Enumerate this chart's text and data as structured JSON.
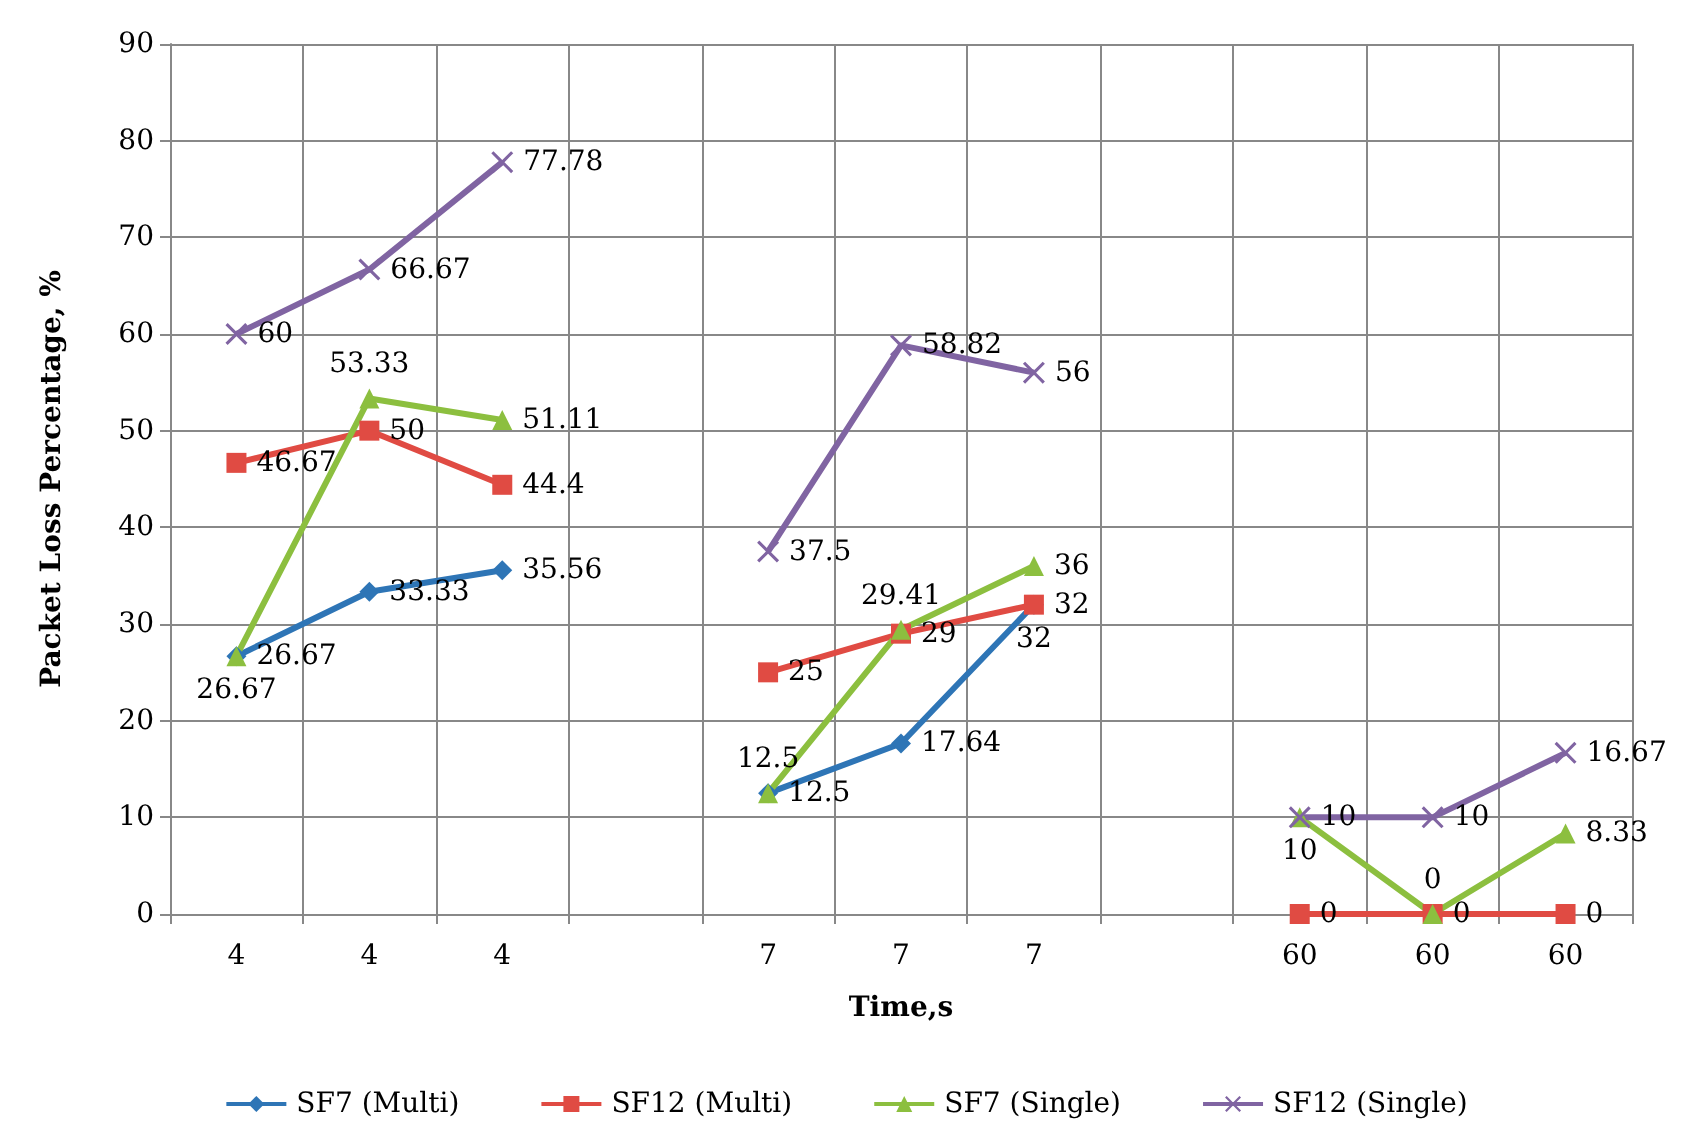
{
  "chart_data": {
    "type": "line",
    "xlabel": "Time,s",
    "ylabel": "Packet Loss Percentage, %",
    "categories": [
      "4",
      "4",
      "4",
      null,
      "7",
      "7",
      "7",
      null,
      "60",
      "60",
      "60"
    ],
    "series": [
      {
        "name": "SF7 (Multi)",
        "color": "#2e75b6",
        "marker": "diamond",
        "values": [
          26.67,
          33.33,
          35.56,
          null,
          12.5,
          17.64,
          32,
          null,
          null,
          null,
          null
        ]
      },
      {
        "name": "SF12 (Multi)",
        "color": "#e04b43",
        "marker": "square",
        "values": [
          46.67,
          50,
          44.4,
          null,
          25,
          29,
          32,
          null,
          0,
          0,
          0
        ]
      },
      {
        "name": "SF7 (Single)",
        "color": "#8cbf3f",
        "marker": "triangle",
        "values": [
          26.67,
          53.33,
          51.11,
          null,
          12.5,
          29.41,
          36,
          null,
          10,
          0,
          8.33
        ]
      },
      {
        "name": "SF12 (Single)",
        "color": "#8064a2",
        "marker": "cross",
        "values": [
          60,
          66.67,
          77.78,
          null,
          37.5,
          58.82,
          56,
          null,
          10,
          10,
          16.67
        ]
      }
    ],
    "ylim": [
      0,
      90
    ],
    "yticks": [
      0,
      10,
      20,
      30,
      40,
      50,
      60,
      70,
      80,
      90
    ],
    "grid": true,
    "legend": "bottom",
    "data_labels": true,
    "line_style": "solid"
  }
}
